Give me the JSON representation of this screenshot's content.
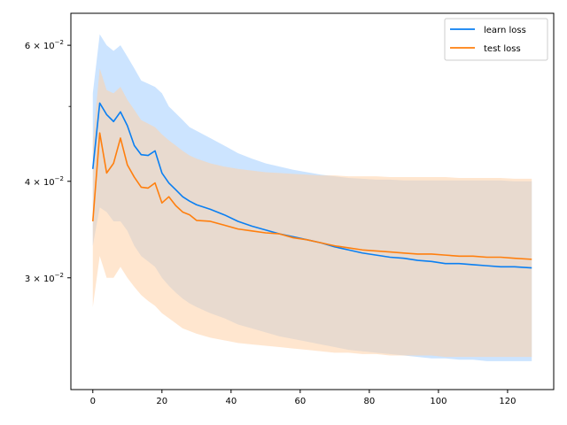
{
  "chart_data": {
    "type": "line",
    "title": "",
    "xlabel": "",
    "ylabel": "",
    "yscale": "log",
    "xlim": [
      -6.35,
      133.35
    ],
    "ylim": [
      0.0215,
      0.066
    ],
    "grid": false,
    "legend_position": "top-right",
    "x_ticks": [
      0,
      20,
      40,
      60,
      80,
      100,
      120
    ],
    "x_tick_labels": [
      "0",
      "20",
      "40",
      "60",
      "80",
      "100",
      "120"
    ],
    "y_ticks": [
      0.03,
      0.04,
      0.06
    ],
    "y_tick_bases": [
      "3 × 10",
      "4 × 10",
      "6 × 10"
    ],
    "y_tick_exponent": "−2",
    "y_minor_ticks": [
      0.05
    ],
    "series": [
      {
        "name": "learn loss",
        "color": "#0a7ff2",
        "band_color": "#a3ceff",
        "x": [
          0,
          2,
          4,
          6,
          8,
          10,
          12,
          14,
          16,
          18,
          20,
          22,
          24,
          26,
          28,
          30,
          34,
          38,
          42,
          46,
          50,
          54,
          58,
          62,
          66,
          70,
          74,
          78,
          82,
          86,
          90,
          94,
          98,
          102,
          106,
          110,
          114,
          118,
          122,
          127
        ],
        "values": [
          0.0415,
          0.0505,
          0.0488,
          0.0478,
          0.0492,
          0.0472,
          0.0445,
          0.0433,
          0.0432,
          0.0438,
          0.041,
          0.0398,
          0.039,
          0.0382,
          0.0377,
          0.0373,
          0.0368,
          0.0362,
          0.0355,
          0.035,
          0.0346,
          0.0342,
          0.0339,
          0.0336,
          0.0333,
          0.0329,
          0.0326,
          0.0323,
          0.0321,
          0.0319,
          0.0318,
          0.0316,
          0.0315,
          0.0313,
          0.0313,
          0.0312,
          0.0311,
          0.031,
          0.031,
          0.0309
        ],
        "upper": [
          0.052,
          0.062,
          0.06,
          0.059,
          0.06,
          0.058,
          0.056,
          0.054,
          0.0535,
          0.053,
          0.052,
          0.05,
          0.049,
          0.048,
          0.047,
          0.0465,
          0.0455,
          0.0445,
          0.0435,
          0.0428,
          0.0422,
          0.0418,
          0.0414,
          0.0411,
          0.0408,
          0.0406,
          0.0404,
          0.0403,
          0.0402,
          0.0402,
          0.0401,
          0.0401,
          0.0401,
          0.0401,
          0.0401,
          0.0401,
          0.0401,
          0.0401,
          0.04,
          0.04
        ],
        "lower": [
          0.033,
          0.037,
          0.0365,
          0.0355,
          0.0355,
          0.0345,
          0.033,
          0.032,
          0.0315,
          0.031,
          0.03,
          0.0293,
          0.0287,
          0.0282,
          0.0278,
          0.0275,
          0.027,
          0.0266,
          0.0261,
          0.0258,
          0.0255,
          0.0252,
          0.025,
          0.0248,
          0.0246,
          0.0244,
          0.0242,
          0.0241,
          0.024,
          0.0239,
          0.0238,
          0.0237,
          0.0236,
          0.0236,
          0.0235,
          0.0235,
          0.0234,
          0.0234,
          0.0234,
          0.0234
        ]
      },
      {
        "name": "test loss",
        "color": "#ff7f0e",
        "band_color": "#ffd2a8",
        "x": [
          0,
          2,
          4,
          6,
          8,
          10,
          12,
          14,
          16,
          18,
          20,
          22,
          24,
          26,
          28,
          30,
          34,
          38,
          42,
          46,
          50,
          54,
          58,
          62,
          66,
          70,
          74,
          78,
          82,
          86,
          90,
          94,
          98,
          102,
          106,
          110,
          114,
          118,
          122,
          127
        ],
        "values": [
          0.0355,
          0.0462,
          0.041,
          0.0422,
          0.0455,
          0.042,
          0.0405,
          0.0393,
          0.0392,
          0.0398,
          0.0375,
          0.0382,
          0.0372,
          0.0365,
          0.0362,
          0.0356,
          0.0355,
          0.0351,
          0.0347,
          0.0345,
          0.0343,
          0.0342,
          0.0338,
          0.0336,
          0.0333,
          0.033,
          0.0328,
          0.0326,
          0.0325,
          0.0324,
          0.0323,
          0.0322,
          0.0322,
          0.0321,
          0.032,
          0.032,
          0.0319,
          0.0319,
          0.0318,
          0.0317
        ],
        "upper": [
          0.045,
          0.056,
          0.0525,
          0.052,
          0.053,
          0.051,
          0.0495,
          0.048,
          0.0475,
          0.047,
          0.046,
          0.0452,
          0.0445,
          0.0438,
          0.0432,
          0.0428,
          0.0422,
          0.0418,
          0.0415,
          0.0413,
          0.0411,
          0.041,
          0.0409,
          0.0408,
          0.0407,
          0.0407,
          0.0406,
          0.0406,
          0.0406,
          0.0405,
          0.0405,
          0.0405,
          0.0405,
          0.0405,
          0.0404,
          0.0404,
          0.0404,
          0.0404,
          0.0403,
          0.0403
        ],
        "lower": [
          0.0275,
          0.032,
          0.03,
          0.03,
          0.031,
          0.03,
          0.0292,
          0.0285,
          0.028,
          0.0276,
          0.027,
          0.0266,
          0.0262,
          0.0258,
          0.0256,
          0.0254,
          0.0251,
          0.0249,
          0.0247,
          0.0246,
          0.0245,
          0.0244,
          0.0243,
          0.0242,
          0.0241,
          0.024,
          0.024,
          0.0239,
          0.0239,
          0.0238,
          0.0238,
          0.0238,
          0.0238,
          0.0237,
          0.0237,
          0.0237,
          0.0237,
          0.0237,
          0.0237,
          0.0237
        ]
      }
    ]
  }
}
